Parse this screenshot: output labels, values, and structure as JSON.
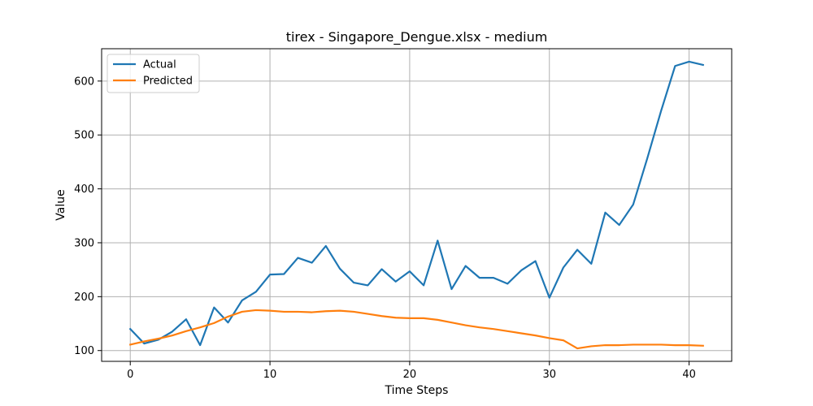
{
  "chart_data": {
    "type": "line",
    "title": "tirex - Singapore_Dengue.xlsx - medium",
    "xlabel": "Time Steps",
    "ylabel": "Value",
    "xlim": [
      -2.05,
      43.05
    ],
    "ylim": [
      80,
      660
    ],
    "xticks": [
      0,
      10,
      20,
      30,
      40
    ],
    "yticks": [
      100,
      200,
      300,
      400,
      500,
      600
    ],
    "grid": true,
    "legend_position": "top-left",
    "x": [
      0,
      1,
      2,
      3,
      4,
      5,
      6,
      7,
      8,
      9,
      10,
      11,
      12,
      13,
      14,
      15,
      16,
      17,
      18,
      19,
      20,
      21,
      22,
      23,
      24,
      25,
      26,
      27,
      28,
      29,
      30,
      31,
      32,
      33,
      34,
      35,
      36,
      37,
      38,
      39,
      40,
      41
    ],
    "series": [
      {
        "name": "Actual",
        "color": "#1f77b4",
        "values": [
          140,
          113,
          120,
          135,
          158,
          110,
          180,
          152,
          193,
          209,
          241,
          242,
          272,
          263,
          294,
          252,
          226,
          221,
          251,
          228,
          247,
          221,
          304,
          214,
          257,
          235,
          235,
          224,
          249,
          266,
          198,
          254,
          287,
          261,
          356,
          333,
          371,
          456,
          545,
          628,
          636,
          630
        ]
      },
      {
        "name": "Predicted",
        "color": "#ff7f0e",
        "values": [
          111,
          117,
          122,
          128,
          136,
          143,
          151,
          163,
          172,
          175,
          174,
          172,
          172,
          171,
          173,
          174,
          172,
          168,
          164,
          161,
          160,
          160,
          157,
          152,
          147,
          143,
          140,
          136,
          132,
          128,
          123,
          119,
          104,
          108,
          110,
          110,
          111,
          111,
          111,
          110,
          110,
          109
        ]
      }
    ]
  }
}
